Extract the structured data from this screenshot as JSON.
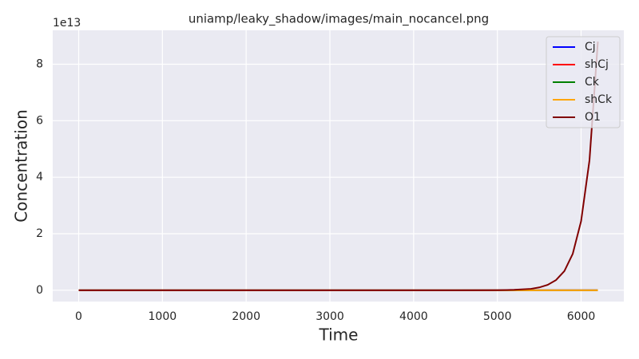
{
  "chart_data": {
    "type": "line",
    "title": "uniamp/leaky_shadow/images/main_nocancel.png",
    "xlabel": "Time",
    "ylabel": "Concentration",
    "y_offset_label": "1e13",
    "x": [
      0,
      1000,
      2000,
      3000,
      4000,
      4500,
      5000,
      5200,
      5400,
      5500,
      5600,
      5700,
      5800,
      5900,
      6000,
      6100,
      6200
    ],
    "series": [
      {
        "name": "Cj",
        "color": "#0000ff",
        "values": [
          0,
          0,
          0,
          0,
          0,
          0,
          0,
          0,
          0,
          0,
          0,
          0,
          0,
          0,
          0,
          0,
          0
        ]
      },
      {
        "name": "shCj",
        "color": "#ff0000",
        "values": [
          0,
          0,
          0,
          0,
          0,
          0,
          0,
          0,
          0,
          0,
          0,
          0,
          0,
          0,
          0,
          0,
          0
        ]
      },
      {
        "name": "Ck",
        "color": "#008000",
        "values": [
          0,
          0,
          0,
          0,
          0,
          0,
          0,
          0,
          0,
          0,
          0,
          0,
          0,
          0,
          0,
          0,
          0
        ]
      },
      {
        "name": "shCk",
        "color": "#ffa500",
        "values": [
          0,
          0,
          0,
          0,
          0,
          0,
          0,
          0,
          0,
          0,
          0,
          0,
          0,
          0,
          0,
          0,
          0
        ]
      },
      {
        "name": "O1",
        "color": "#800000",
        "values": [
          0,
          0,
          0,
          0,
          0,
          0,
          0.004,
          0.015,
          0.05,
          0.1,
          0.19,
          0.36,
          0.68,
          1.29,
          2.45,
          4.6,
          8.8
        ]
      }
    ],
    "xlim": [
      -310,
      6510
    ],
    "ylim": [
      -0.4,
      9.2
    ],
    "xticks": [
      0,
      1000,
      2000,
      3000,
      4000,
      5000,
      6000
    ],
    "yticks": [
      0,
      2,
      4,
      6,
      8
    ],
    "grid": true,
    "legend": "upper right"
  }
}
